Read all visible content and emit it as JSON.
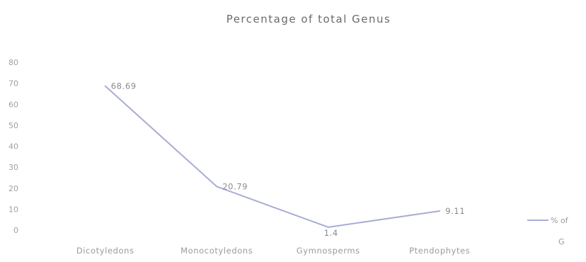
{
  "chart_data": {
    "type": "line",
    "title": "Percentage of total Genus",
    "xlabel": "",
    "ylabel": "",
    "categories": [
      "Dicotyledons",
      "Monocotyledons",
      "Gymnosperms",
      "Ptendophytes"
    ],
    "series": [
      {
        "name": "% of G",
        "values": [
          68.69,
          20.79,
          1.4,
          9.11
        ],
        "data_labels": [
          "68.69",
          "20.79",
          "1.4",
          "9.11"
        ],
        "color": "#a9acd6"
      }
    ],
    "yticks": [
      "0",
      "10",
      "20",
      "30",
      "40",
      "50",
      "60",
      "70",
      "80"
    ],
    "ylim": [
      0,
      80
    ],
    "grid": false,
    "legend": {
      "position": "right",
      "label_lines": [
        "% of",
        "G"
      ]
    }
  }
}
